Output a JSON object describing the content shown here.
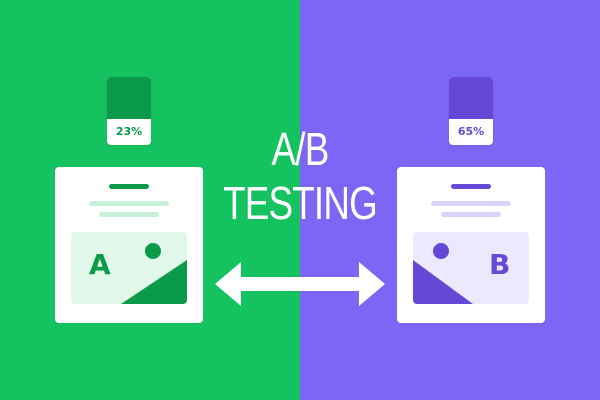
{
  "colors": {
    "green_bg": "#14c25f",
    "purple_bg": "#7c66f5",
    "green_dark": "#0a9a4a",
    "green_light": "#c7f0d8",
    "green_lighter": "#e0f7ea",
    "purple_dark": "#6549d6",
    "purple_light": "#d9d2fc",
    "purple_lighter": "#ece8fe",
    "white": "#ffffff"
  },
  "title": {
    "line1": "A/B",
    "line2": "TESTING"
  },
  "variant_a": {
    "letter": "A",
    "percent_label": "23%",
    "percent_value": 23
  },
  "variant_b": {
    "letter": "B",
    "percent_label": "65%",
    "percent_value": 65
  },
  "icons": {
    "arrow": "double-headed-arrow-icon",
    "image": "image-placeholder-icon"
  }
}
